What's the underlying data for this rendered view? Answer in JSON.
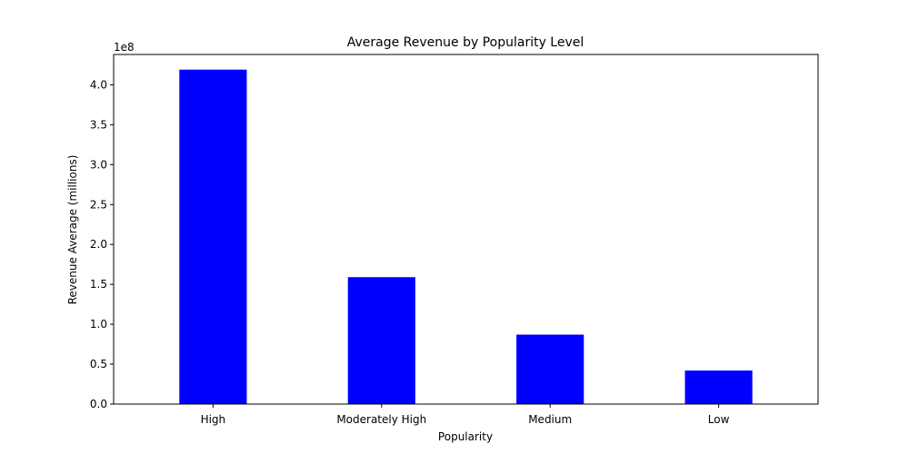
{
  "chart_data": {
    "type": "bar",
    "title": "Average Revenue by Popularity Level",
    "xlabel": "Popularity",
    "ylabel": "Revenue Average (millions)",
    "y_offset_label": "1e8",
    "categories": [
      "High",
      "Moderately High",
      "Medium",
      "Low"
    ],
    "values": [
      419000000,
      159000000,
      87000000,
      42000000
    ],
    "ylim": [
      0,
      438000000
    ],
    "yticks": [
      0,
      50000000,
      100000000,
      150000000,
      200000000,
      250000000,
      300000000,
      350000000,
      400000000
    ],
    "ytick_labels": [
      "0.0",
      "0.5",
      "1.0",
      "1.5",
      "2.0",
      "2.5",
      "3.0",
      "3.5",
      "4.0"
    ],
    "bar_color": "#0000ff",
    "grid": false,
    "legend": "none"
  }
}
